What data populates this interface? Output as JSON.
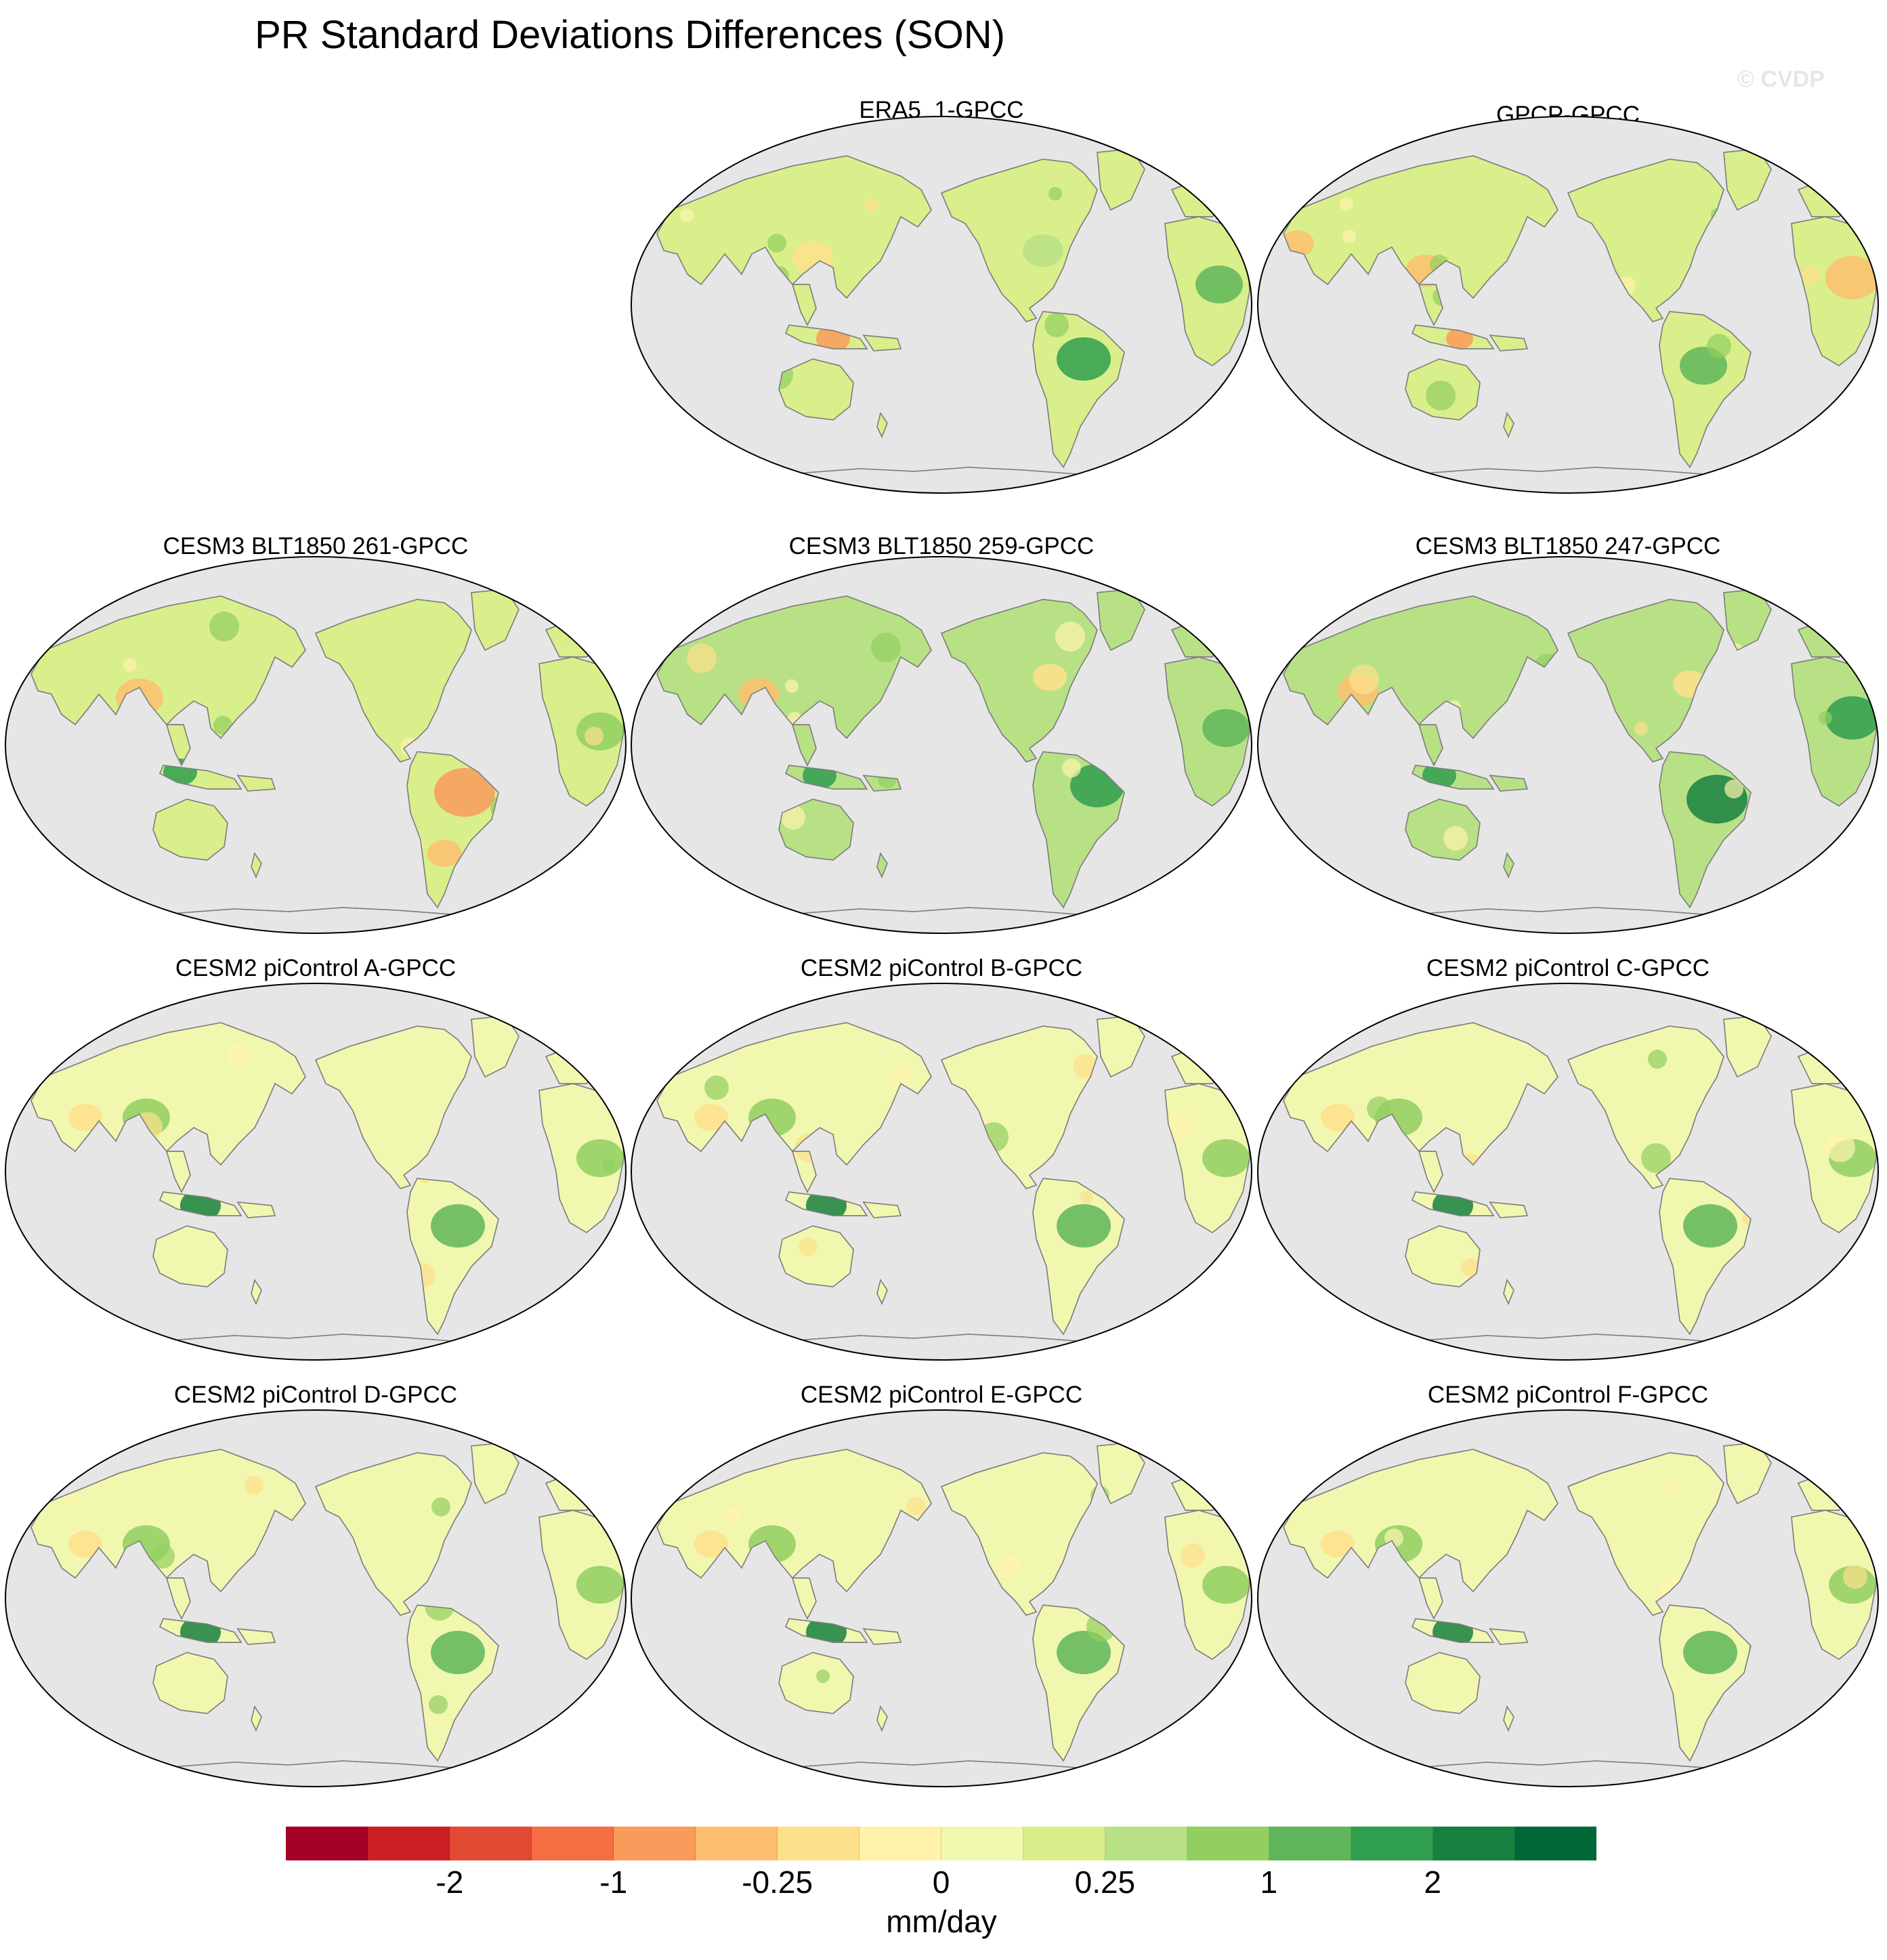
{
  "figure": {
    "title": "PR Standard Deviations Differences (SON)",
    "watermark": "© CVDP"
  },
  "panels": [
    {
      "title": "ERA5_1-GPCC",
      "pattern": "obs1"
    },
    {
      "title": "GPCP-GPCC",
      "pattern": "obs2"
    },
    {
      "title": "CESM3 BLT1850 261-GPCC",
      "pattern": "cesm3a"
    },
    {
      "title": "CESM3 BLT1850 259-GPCC",
      "pattern": "cesm3b"
    },
    {
      "title": "CESM3 BLT1850 247-GPCC",
      "pattern": "cesm3c"
    },
    {
      "title": "CESM2 piControl A-GPCC",
      "pattern": "cesm2"
    },
    {
      "title": "CESM2 piControl B-GPCC",
      "pattern": "cesm2"
    },
    {
      "title": "CESM2 piControl C-GPCC",
      "pattern": "cesm2"
    },
    {
      "title": "CESM2 piControl D-GPCC",
      "pattern": "cesm2"
    },
    {
      "title": "CESM2 piControl E-GPCC",
      "pattern": "cesm2"
    },
    {
      "title": "CESM2 piControl F-GPCC",
      "pattern": "cesm2"
    }
  ],
  "colorbar": {
    "units": "mm/day",
    "colors": [
      "#a50026",
      "#cc1f25",
      "#e34a33",
      "#f46d43",
      "#f99b5a",
      "#fdbf6f",
      "#fee08b",
      "#fff3ac",
      "#f2f7b0",
      "#d9ef8b",
      "#b8e186",
      "#91cf60",
      "#5fb65a",
      "#2f9e4f",
      "#17803f",
      "#006837"
    ],
    "tick_labels": [
      "-2",
      "-1",
      "-0.25",
      "0",
      "0.25",
      "1",
      "2"
    ],
    "tick_boundary_index": [
      2,
      4,
      6,
      8,
      10,
      12,
      14
    ]
  },
  "style": {
    "ocean_fill": "#e6e6e6",
    "coastline": "#7f7f7f"
  }
}
